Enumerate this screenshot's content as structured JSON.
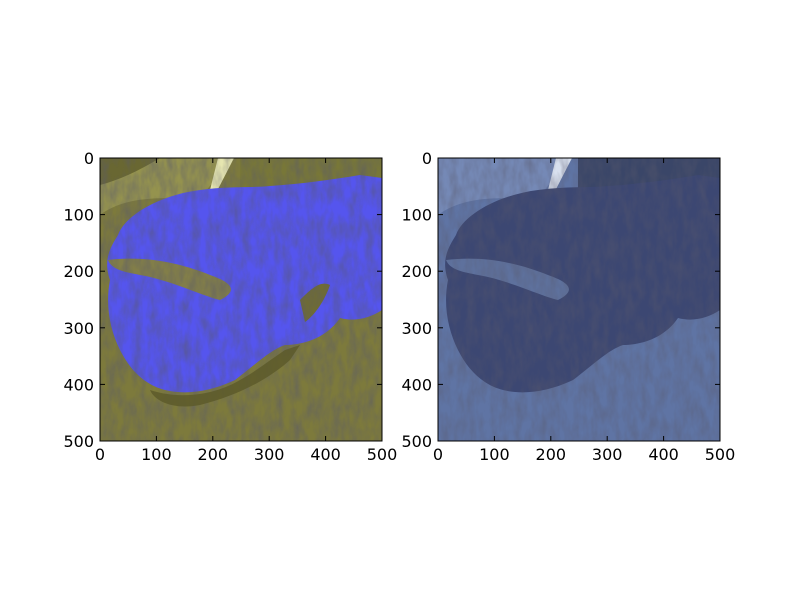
{
  "chart_data": [
    {
      "type": "heatmap",
      "panel": "left",
      "title": "",
      "xlabel": "",
      "ylabel": "",
      "xlim": [
        0,
        500
      ],
      "ylim": [
        500,
        0
      ],
      "xticks": [
        0,
        100,
        200,
        300,
        400,
        500
      ],
      "yticks": [
        0,
        100,
        200,
        300,
        400,
        500
      ],
      "grid": false,
      "colors": {
        "background": "#7a7a36",
        "highlight": "#4c4cff"
      }
    },
    {
      "type": "heatmap",
      "panel": "right",
      "title": "",
      "xlabel": "",
      "ylabel": "",
      "xlim": [
        0,
        500
      ],
      "ylim": [
        500,
        0
      ],
      "xticks": [
        0,
        100,
        200,
        300,
        400,
        500
      ],
      "yticks": [
        0,
        100,
        200,
        300,
        400,
        500
      ],
      "grid": false,
      "colors": {
        "background": "#5b6f9e",
        "land": "#3b4670"
      }
    }
  ]
}
